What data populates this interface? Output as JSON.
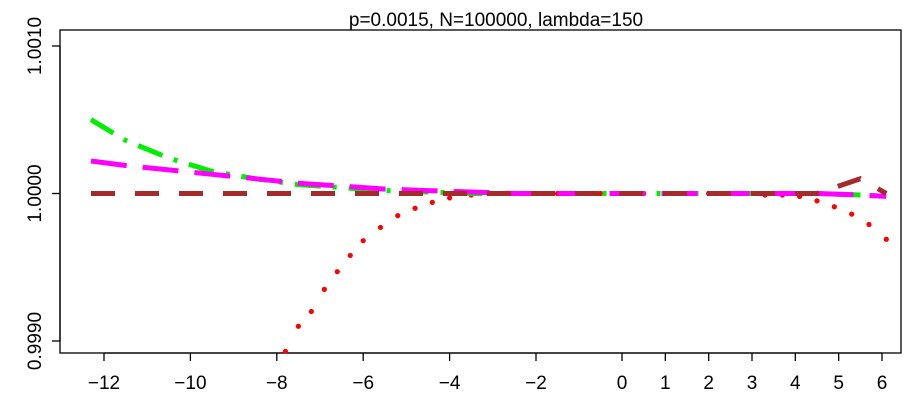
{
  "chart_data": {
    "type": "line",
    "title": "p=0.0015, N=100000, lambda=150",
    "xlabel": "",
    "ylabel": "",
    "x_ticks": [
      -12,
      -10,
      -8,
      -6,
      -4,
      -2,
      0,
      1,
      2,
      3,
      4,
      5,
      6
    ],
    "y_ticks": [
      0.999,
      1.0,
      1.001
    ],
    "y_tick_labels": [
      "0.9990",
      "1.0000",
      "1.0010"
    ],
    "x_scale_note": "nonlinear: spacing between -12 and -2 is wider per unit than between 0 and 6",
    "ylim": [
      0.99895,
      1.00105
    ],
    "grid": false,
    "legend": "none",
    "series": [
      {
        "style": "dotted",
        "color": "#ff0000",
        "x": [
          -7.8,
          -7.5,
          -7.2,
          -6.9,
          -6.6,
          -6.3,
          -6.0,
          -5.6,
          -5.2,
          -4.8,
          -4.4,
          -4.0,
          -3.5,
          -3.0,
          -2.5,
          -2.0,
          -1.5,
          -1.0,
          -0.5,
          0.0,
          0.5,
          1.0,
          1.5,
          2.0,
          2.5,
          3.0,
          3.3,
          3.7,
          4.1,
          4.5,
          4.9,
          5.3,
          5.7,
          6.1
        ],
        "y": [
          0.99893,
          0.9991,
          0.9992,
          0.99935,
          0.99947,
          0.99958,
          0.99968,
          0.99977,
          0.99985,
          0.9999,
          0.99994,
          0.99997,
          0.99999,
          1.0,
          1.0,
          1.0,
          1.0,
          1.0,
          1.0,
          1.0,
          1.0,
          1.0,
          1.0,
          1.0,
          1.0,
          1.0,
          0.99999,
          0.99999,
          0.99998,
          0.99995,
          0.99991,
          0.99986,
          0.99979,
          0.99969
        ]
      },
      {
        "style": "dashdot",
        "color": "#00ee00",
        "x": [
          -12.3,
          -11.5,
          -10.5,
          -9.5,
          -8.5,
          -7.5,
          -6.5,
          -5.5,
          -4.5,
          -3.5,
          -2.5,
          -1.5,
          -0.5,
          0.5,
          1.5,
          2.5,
          3.5,
          4.5,
          5.5,
          6.1
        ],
        "y": [
          1.0005,
          1.00036,
          1.00024,
          1.00015,
          1.0001,
          1.00006,
          1.00004,
          1.00002,
          1.00001,
          1.0,
          1.0,
          1.0,
          1.0,
          1.0,
          1.0,
          1.0,
          1.0,
          1.0,
          0.99999,
          0.99998
        ]
      },
      {
        "style": "longdash",
        "color": "#ff00ff",
        "x": [
          -12.3,
          -11.5,
          -10.5,
          -9.5,
          -8.5,
          -7.5,
          -6.5,
          -5.5,
          -4.5,
          -3.5,
          -2.5,
          -1.5,
          -0.5,
          0.5,
          1.5,
          2.5,
          3.5,
          4.5,
          5.5,
          6.1
        ],
        "y": [
          1.00022,
          1.00019,
          1.00016,
          1.00013,
          1.0001,
          1.00007,
          1.00005,
          1.00003,
          1.00002,
          1.00001,
          1.0,
          1.0,
          1.0,
          1.0,
          1.0,
          1.0,
          1.0,
          1.0,
          0.99999,
          0.99998
        ]
      },
      {
        "style": "dashed",
        "color": "#a52a2a",
        "x": [
          -12.3,
          -11.0,
          -9.5,
          -8.0,
          -6.5,
          -5.0,
          -3.5,
          -2.0,
          -0.5,
          1.0,
          2.5,
          3.5,
          4.5,
          5.5,
          6.1
        ],
        "y": [
          1.0,
          1.0,
          1.0,
          1.0,
          1.0,
          1.0,
          1.0,
          1.0,
          1.0,
          1.0,
          1.0,
          1.0,
          1.0,
          1.0001,
          1.0
        ]
      }
    ]
  }
}
